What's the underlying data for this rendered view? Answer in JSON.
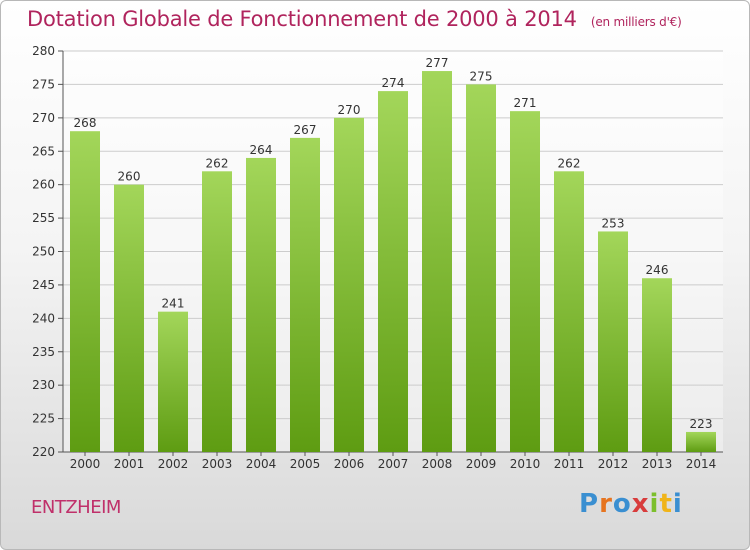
{
  "header": {
    "title": "Dotation Globale de Fonctionnement de 2000 à 2014",
    "unit": "(en milliers d'€)"
  },
  "footer": {
    "commune": "ENTZHEIM",
    "logo_letters": [
      "P",
      "r",
      "o",
      "x",
      "i",
      "t",
      "i"
    ]
  },
  "chart_data": {
    "type": "bar",
    "title": "Dotation Globale de Fonctionnement de 2000 à 2014",
    "subtitle": "(en milliers d'€)",
    "xlabel": "",
    "ylabel": "",
    "categories": [
      "2000",
      "2001",
      "2002",
      "2003",
      "2004",
      "2005",
      "2006",
      "2007",
      "2008",
      "2009",
      "2010",
      "2011",
      "2012",
      "2013",
      "2014"
    ],
    "values": [
      268,
      260,
      241,
      262,
      264,
      267,
      270,
      274,
      277,
      275,
      271,
      262,
      253,
      246,
      223
    ],
    "ylim": [
      220,
      280
    ],
    "yticks": [
      220,
      225,
      230,
      235,
      240,
      245,
      250,
      255,
      260,
      265,
      270,
      275,
      280
    ],
    "grid": true,
    "colors": {
      "bar_light": "#a3d65a",
      "bar_dark": "#5e9c12",
      "grid": "#cccccc",
      "axis": "#555555"
    }
  }
}
